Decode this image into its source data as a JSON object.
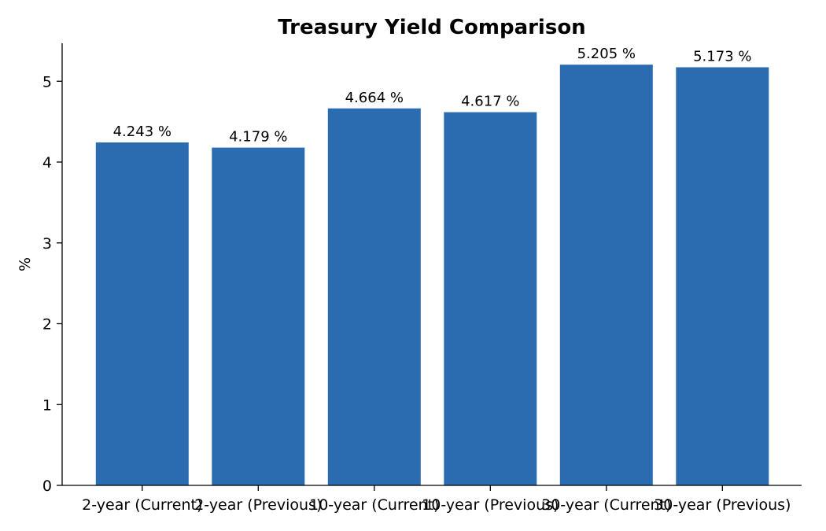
{
  "chart_data": {
    "type": "bar",
    "title": "Treasury Yield Comparison",
    "xlabel": "",
    "ylabel": "%",
    "categories": [
      "2-year (Current)",
      "2-year (Previous)",
      "10-year (Current)",
      "10-year (Previous)",
      "30-year (Current)",
      "30-year (Previous)"
    ],
    "values": [
      4.243,
      4.179,
      4.664,
      4.617,
      5.205,
      5.173
    ],
    "data_labels": [
      "4.243 %",
      "4.179 %",
      "4.664 %",
      "4.617 %",
      "5.205 %",
      "5.173 %"
    ],
    "ylim": [
      0,
      5.47
    ],
    "yticks": [
      0,
      1,
      2,
      3,
      4,
      5
    ],
    "ytick_labels": [
      "0",
      "1",
      "2",
      "3",
      "4",
      "5"
    ],
    "bar_color": "#2b6cb0",
    "grid": false,
    "legend": "none"
  }
}
